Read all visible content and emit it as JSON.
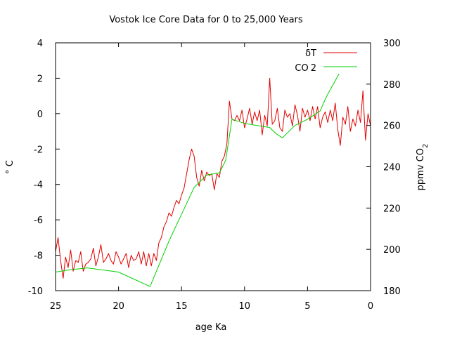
{
  "chart_data": {
    "type": "line",
    "title": "Vostok Ice Core Data for 0 to 25,000 Years",
    "xlabel": "age Ka",
    "ylabel_left": "° C",
    "ylabel_right_main": "ppmv CO",
    "ylabel_right_sub": "2",
    "xlim": [
      25,
      0
    ],
    "ylim_left": [
      -10,
      4
    ],
    "ylim_right": [
      180,
      300
    ],
    "x_ticks": [
      "25",
      "20",
      "15",
      "10",
      "5",
      "0"
    ],
    "y_left_ticks": [
      "4",
      "2",
      "0",
      "-2",
      "-4",
      "-6",
      "-8",
      "-10"
    ],
    "y_right_ticks": [
      "300",
      "280",
      "260",
      "240",
      "220",
      "200",
      "180"
    ],
    "grid": false,
    "legend_position": "top-right",
    "series": [
      {
        "name": "δT",
        "color": "#e00000",
        "axis": "left",
        "x": [
          25.0,
          24.8,
          24.6,
          24.4,
          24.2,
          24.0,
          23.8,
          23.6,
          23.4,
          23.2,
          23.0,
          22.8,
          22.6,
          22.4,
          22.2,
          22.0,
          21.8,
          21.6,
          21.4,
          21.2,
          21.0,
          20.8,
          20.6,
          20.4,
          20.2,
          20.0,
          19.8,
          19.6,
          19.4,
          19.2,
          19.0,
          18.8,
          18.6,
          18.4,
          18.2,
          18.0,
          17.8,
          17.6,
          17.4,
          17.2,
          17.0,
          16.8,
          16.6,
          16.4,
          16.2,
          16.0,
          15.8,
          15.6,
          15.4,
          15.2,
          15.0,
          14.8,
          14.6,
          14.4,
          14.2,
          14.0,
          13.8,
          13.6,
          13.4,
          13.2,
          13.0,
          12.8,
          12.6,
          12.4,
          12.2,
          12.0,
          11.8,
          11.6,
          11.4,
          11.2,
          11.0,
          10.8,
          10.6,
          10.4,
          10.2,
          10.0,
          9.8,
          9.6,
          9.4,
          9.2,
          9.0,
          8.8,
          8.6,
          8.4,
          8.2,
          8.0,
          7.8,
          7.6,
          7.4,
          7.2,
          7.0,
          6.8,
          6.6,
          6.4,
          6.2,
          6.0,
          5.8,
          5.6,
          5.4,
          5.2,
          5.0,
          4.8,
          4.6,
          4.4,
          4.2,
          4.0,
          3.8,
          3.6,
          3.4,
          3.2,
          3.0,
          2.8,
          2.6,
          2.4,
          2.2,
          2.0,
          1.8,
          1.6,
          1.4,
          1.2,
          1.0,
          0.8,
          0.6,
          0.4,
          0.2,
          0.0
        ],
        "values": [
          -7.8,
          -7.0,
          -8.3,
          -9.3,
          -8.1,
          -8.7,
          -7.7,
          -8.9,
          -8.3,
          -8.4,
          -7.8,
          -8.9,
          -8.5,
          -8.4,
          -8.2,
          -7.6,
          -8.6,
          -8.1,
          -7.4,
          -8.4,
          -8.2,
          -7.9,
          -8.3,
          -8.5,
          -7.8,
          -8.1,
          -8.5,
          -8.2,
          -7.9,
          -8.7,
          -8.0,
          -8.3,
          -8.2,
          -7.8,
          -8.5,
          -7.8,
          -8.6,
          -7.9,
          -8.6,
          -7.9,
          -8.3,
          -7.3,
          -7.0,
          -6.4,
          -6.1,
          -5.6,
          -5.8,
          -5.3,
          -4.9,
          -5.1,
          -4.6,
          -4.2,
          -3.4,
          -2.6,
          -2.0,
          -2.4,
          -3.6,
          -4.1,
          -3.2,
          -3.8,
          -3.3,
          -3.5,
          -3.4,
          -4.3,
          -3.4,
          -3.6,
          -2.7,
          -2.4,
          -1.7,
          0.7,
          -0.3,
          -0.4,
          -0.1,
          -0.4,
          0.2,
          -0.8,
          -0.3,
          0.3,
          -0.6,
          0.1,
          -0.4,
          0.2,
          -1.2,
          -0.1,
          -0.7,
          2.0,
          -0.6,
          -0.4,
          0.3,
          -0.8,
          -1.0,
          0.2,
          -0.2,
          0.0,
          -0.7,
          0.5,
          -0.1,
          -1.0,
          0.3,
          -0.2,
          0.2,
          -0.4,
          0.4,
          -0.3,
          0.4,
          -0.8,
          -0.2,
          0.1,
          -0.5,
          0.2,
          -0.4,
          0.6,
          -0.9,
          -1.8,
          -0.2,
          -0.6,
          0.4,
          -1.0,
          -0.3,
          -0.7,
          0.2,
          -0.5,
          1.3,
          -1.5,
          0.0,
          -0.7
        ]
      },
      {
        "name": "CO",
        "name_sub": "2",
        "color": "#00d000",
        "axis": "right",
        "x": [
          25.0,
          24.0,
          22.5,
          20.0,
          17.5,
          16.0,
          14.0,
          13.0,
          12.0,
          11.5,
          11.0,
          10.5,
          10.0,
          9.0,
          8.0,
          7.5,
          7.0,
          6.0,
          5.0,
          4.0,
          3.5,
          2.5
        ],
        "values": [
          189,
          190,
          191,
          189,
          182,
          204,
          230,
          236,
          237,
          243,
          263,
          262,
          261,
          260,
          259,
          256,
          254,
          260,
          263,
          267,
          274,
          285
        ]
      }
    ]
  }
}
